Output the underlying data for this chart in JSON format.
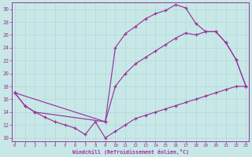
{
  "xlabel": "Windchill (Refroidissement éolien,°C)",
  "bg_color": "#c8e8e8",
  "line_color": "#993399",
  "grid_color": "#b0d8d8",
  "xlim": [
    -0.3,
    23.3
  ],
  "ylim": [
    9.5,
    31.0
  ],
  "xticks": [
    0,
    1,
    2,
    3,
    4,
    5,
    6,
    7,
    8,
    9,
    10,
    11,
    12,
    13,
    14,
    15,
    16,
    17,
    18,
    19,
    20,
    21,
    22,
    23
  ],
  "yticks": [
    10,
    12,
    14,
    16,
    18,
    20,
    22,
    24,
    26,
    28,
    30
  ],
  "top_x": [
    0,
    1,
    2,
    9,
    10,
    11,
    12,
    13,
    14,
    15,
    16,
    17,
    18,
    19,
    20,
    21,
    22,
    23
  ],
  "top_y": [
    17,
    15,
    14,
    12.5,
    24,
    26.2,
    27.3,
    28.5,
    29.3,
    29.8,
    30.7,
    30.2,
    27.8,
    26.5,
    26.5,
    24.8,
    22.2,
    18
  ],
  "mid_x": [
    0,
    9,
    10,
    11,
    12,
    13,
    14,
    15,
    16,
    17,
    18,
    19,
    20,
    21,
    22,
    23
  ],
  "mid_y": [
    17,
    12.5,
    18,
    20,
    21.5,
    22.5,
    23.5,
    24.5,
    25.5,
    26.3,
    26.0,
    26.5,
    26.5,
    24.8,
    22.2,
    18
  ],
  "bot_x": [
    0,
    1,
    2,
    3,
    4,
    5,
    6,
    7,
    8,
    9,
    10,
    11,
    12,
    13,
    14,
    15,
    16,
    17,
    18,
    19,
    20,
    21,
    22,
    23
  ],
  "bot_y": [
    17,
    15,
    14,
    13.2,
    12.5,
    12.0,
    11.5,
    10.5,
    12.5,
    10.0,
    11.0,
    12.0,
    13.0,
    13.5,
    14.0,
    14.5,
    15.0,
    15.5,
    16.0,
    16.5,
    17.0,
    17.5,
    18.0,
    18.0
  ]
}
